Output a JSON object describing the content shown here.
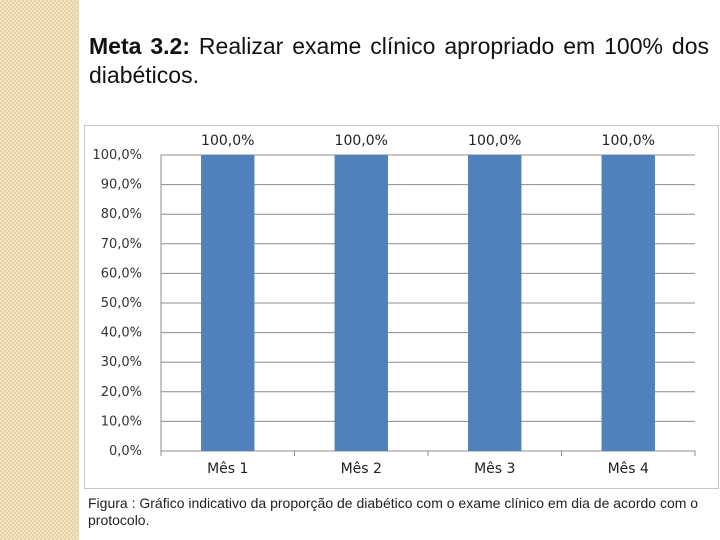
{
  "heading": {
    "label": "Meta 3.2:",
    "text": " Realizar exame clínico apropriado em 100% dos diabéticos."
  },
  "chart_data": {
    "type": "bar",
    "categories": [
      "Mês 1",
      "Mês 2",
      "Mês 3",
      "Mês 4"
    ],
    "values": [
      100,
      100,
      100,
      100
    ],
    "data_labels": [
      "100,0%",
      "100,0%",
      "100,0%",
      "100,0%"
    ],
    "y_ticks": [
      "0,0%",
      "10,0%",
      "20,0%",
      "30,0%",
      "40,0%",
      "50,0%",
      "60,0%",
      "70,0%",
      "80,0%",
      "90,0%",
      "100,0%"
    ],
    "ylim": [
      0,
      100
    ],
    "grid": true,
    "legend": "none",
    "bar_color": "#4f81bd",
    "title": "",
    "xlabel": "",
    "ylabel": ""
  },
  "caption": "Figura : Gráfico indicativo da proporção de diabético com o exame clínico em dia de acordo com o protocolo."
}
